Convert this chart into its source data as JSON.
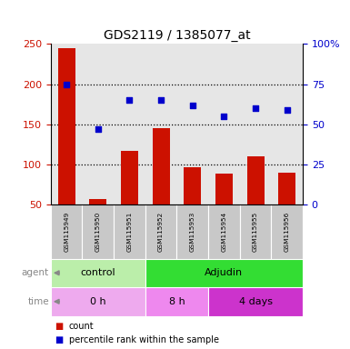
{
  "title": "GDS2119 / 1385077_at",
  "samples": [
    "GSM115949",
    "GSM115950",
    "GSM115951",
    "GSM115952",
    "GSM115953",
    "GSM115954",
    "GSM115955",
    "GSM115956"
  ],
  "counts": [
    245,
    57,
    117,
    145,
    96,
    89,
    110,
    90
  ],
  "percentile_ranks": [
    75,
    47,
    65,
    65,
    62,
    55,
    60,
    59
  ],
  "left_ylim": [
    50,
    250
  ],
  "left_yticks": [
    50,
    100,
    150,
    200,
    250
  ],
  "right_ylim": [
    0,
    100
  ],
  "right_yticks": [
    0,
    25,
    50,
    75,
    100
  ],
  "bar_color": "#cc1100",
  "dot_color": "#0000cc",
  "bar_width": 0.55,
  "agent_regions": [
    {
      "label": "control",
      "start": 0,
      "end": 3,
      "color": "#bbeeaa"
    },
    {
      "label": "Adjudin",
      "start": 3,
      "end": 8,
      "color": "#33dd33"
    }
  ],
  "time_regions": [
    {
      "label": "0 h",
      "start": 0,
      "end": 3,
      "color": "#eeaaee"
    },
    {
      "label": "8 h",
      "start": 3,
      "end": 5,
      "color": "#ee88ee"
    },
    {
      "label": "4 days",
      "start": 5,
      "end": 8,
      "color": "#cc33cc"
    }
  ],
  "legend_count_label": "count",
  "legend_percentile_label": "percentile rank within the sample",
  "sample_box_color": "#c8c8c8",
  "grid_color": "black",
  "fig_bg": "#ffffff",
  "left_label_color": "#cc1100",
  "right_label_color": "#0000cc",
  "arrow_color": "#888888",
  "row_label_color": "#888888"
}
